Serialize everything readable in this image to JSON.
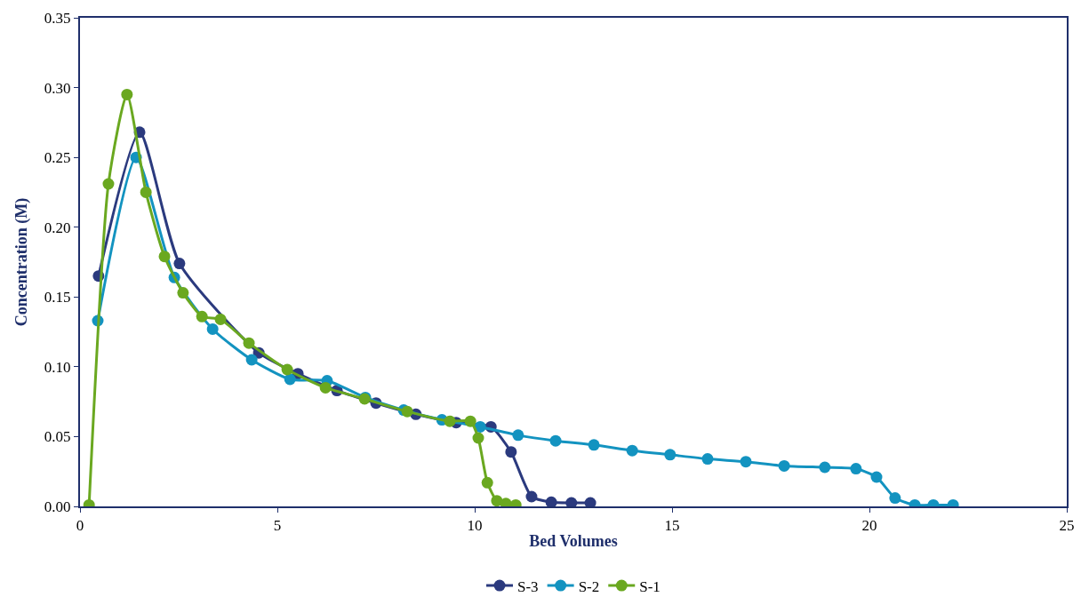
{
  "chart_data": {
    "type": "line",
    "xlabel": "Bed Volumes",
    "ylabel": "Concentration (M)",
    "xlim": [
      0,
      25
    ],
    "xticks": [
      0,
      5,
      10,
      15,
      20,
      25
    ],
    "ylim": [
      0,
      0.35
    ],
    "yticks": [
      {
        "value": 0,
        "label": "0.00"
      },
      {
        "value": 0.05,
        "label": "0.05"
      },
      {
        "value": 0.1,
        "label": "0.10"
      },
      {
        "value": 0.15,
        "label": "0.15"
      },
      {
        "value": 0.2,
        "label": "0.20"
      },
      {
        "value": 0.25,
        "label": "0.25"
      },
      {
        "value": 0.3,
        "label": "0.30"
      },
      {
        "value": 0.35,
        "label": "0.35"
      }
    ],
    "legend": "bottom",
    "marker": "circle",
    "line_style": "solid",
    "series": [
      {
        "name": "S-3",
        "color": "#2b3a7e",
        "x": [
          0.47,
          1.51,
          2.52,
          4.53,
          5.52,
          6.51,
          7.5,
          8.51,
          9.53,
          10.41,
          10.92,
          11.44,
          11.94,
          12.45,
          12.93
        ],
        "values": [
          0.165,
          0.268,
          0.174,
          0.11,
          0.095,
          0.083,
          0.074,
          0.066,
          0.06,
          0.057,
          0.039,
          0.007,
          0.003,
          0.0025,
          0.0025
        ]
      },
      {
        "name": "S-2",
        "color": "#1393c0",
        "x": [
          0.45,
          1.42,
          2.39,
          3.36,
          4.35,
          5.32,
          6.26,
          7.23,
          8.2,
          9.17,
          10.14,
          11.1,
          12.05,
          13.02,
          13.99,
          14.95,
          15.9,
          16.87,
          17.84,
          18.87,
          19.66,
          20.18,
          20.65,
          21.15,
          21.62,
          22.12
        ],
        "values": [
          0.133,
          0.25,
          0.164,
          0.127,
          0.105,
          0.091,
          0.09,
          0.078,
          0.069,
          0.062,
          0.057,
          0.051,
          0.047,
          0.044,
          0.04,
          0.037,
          0.034,
          0.032,
          0.029,
          0.028,
          0.027,
          0.021,
          0.006,
          0.001,
          0.001,
          0.001
        ]
      },
      {
        "name": "S-1",
        "color": "#6aa820",
        "x": [
          0.23,
          0.72,
          1.19,
          1.67,
          2.14,
          2.61,
          3.09,
          3.56,
          4.28,
          5.25,
          6.22,
          7.21,
          8.29,
          9.37,
          9.89,
          10.09,
          10.32,
          10.56,
          10.79,
          11.04
        ],
        "values": [
          0.001,
          0.231,
          0.295,
          0.225,
          0.179,
          0.153,
          0.136,
          0.134,
          0.117,
          0.098,
          0.085,
          0.077,
          0.068,
          0.061,
          0.061,
          0.049,
          0.017,
          0.004,
          0.002,
          0.001
        ]
      }
    ]
  }
}
